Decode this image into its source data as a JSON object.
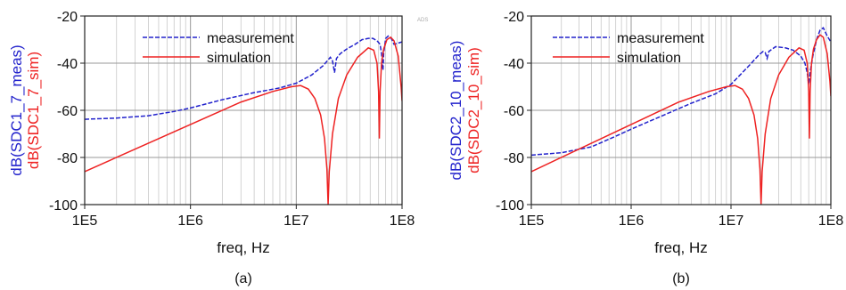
{
  "watermark": "ADS",
  "chart_data": [
    {
      "type": "line",
      "caption": "(a)",
      "xlabel": "freq, Hz",
      "ylabel_measured": "dB(SDC1_7_meas)",
      "ylabel_simulated": "dB(SDC1_7_sim)",
      "x_scale": "log",
      "xlim": [
        100000,
        100000000
      ],
      "ylim": [
        -100,
        -20
      ],
      "x_ticks": [
        "1E5",
        "1E6",
        "1E7",
        "1E8"
      ],
      "y_ticks": [
        "-20",
        "-40",
        "-60",
        "-80",
        "-100"
      ],
      "grid": true,
      "legend_position": "top-left",
      "series": [
        {
          "name": "measurement",
          "color": "#2222cc",
          "style": "dashed",
          "points": [
            [
              100000,
              -63.8
            ],
            [
              200000,
              -63.3
            ],
            [
              400000,
              -62.3
            ],
            [
              700000,
              -60.5
            ],
            [
              1000000,
              -59
            ],
            [
              2000000,
              -55.5
            ],
            [
              4000000,
              -52.5
            ],
            [
              7000000,
              -50.5
            ],
            [
              10000000,
              -48.5
            ],
            [
              14000000,
              -45
            ],
            [
              18000000,
              -41
            ],
            [
              21000000,
              -37.5
            ],
            [
              22000000,
              -39
            ],
            [
              23000000,
              -44
            ],
            [
              24000000,
              -38
            ],
            [
              26000000,
              -36
            ],
            [
              30000000,
              -34
            ],
            [
              36000000,
              -32
            ],
            [
              42000000,
              -30
            ],
            [
              48000000,
              -29.5
            ],
            [
              53000000,
              -29.5
            ],
            [
              58000000,
              -30.5
            ],
            [
              62000000,
              -32
            ],
            [
              64000000,
              -36
            ],
            [
              66000000,
              -43
            ],
            [
              67000000,
              -36
            ],
            [
              70000000,
              -29.5
            ],
            [
              74000000,
              -28.5
            ],
            [
              79000000,
              -29.5
            ],
            [
              84000000,
              -32
            ],
            [
              100000000,
              -31
            ]
          ]
        },
        {
          "name": "simulation",
          "color": "#ee2222",
          "style": "solid",
          "points": [
            [
              100000,
              -86
            ],
            [
              1000000,
              -66
            ],
            [
              3000000,
              -56.5
            ],
            [
              6000000,
              -52
            ],
            [
              9000000,
              -50
            ],
            [
              11000000,
              -49.5
            ],
            [
              13000000,
              -51
            ],
            [
              15000000,
              -55
            ],
            [
              17000000,
              -62
            ],
            [
              18500000,
              -72
            ],
            [
              19500000,
              -85
            ],
            [
              20000000,
              -100
            ],
            [
              20500000,
              -86
            ],
            [
              22000000,
              -70
            ],
            [
              25000000,
              -55
            ],
            [
              30000000,
              -45
            ],
            [
              38000000,
              -37.5
            ],
            [
              48000000,
              -33.5
            ],
            [
              54000000,
              -34.5
            ],
            [
              58000000,
              -40
            ],
            [
              60000000,
              -52
            ],
            [
              61000000,
              -72
            ],
            [
              62000000,
              -52
            ],
            [
              64000000,
              -40
            ],
            [
              67000000,
              -34
            ],
            [
              72000000,
              -30
            ],
            [
              78000000,
              -29
            ],
            [
              84000000,
              -30.5
            ],
            [
              92000000,
              -37
            ],
            [
              98000000,
              -50
            ],
            [
              100000000,
              -56
            ]
          ]
        }
      ]
    },
    {
      "type": "line",
      "caption": "(b)",
      "xlabel": "freq, Hz",
      "ylabel_measured": "dB(SDC2_10_meas)",
      "ylabel_simulated": "dB(SDC2_10_sim)",
      "x_scale": "log",
      "xlim": [
        100000,
        100000000
      ],
      "ylim": [
        -100,
        -20
      ],
      "x_ticks": [
        "1E5",
        "1E6",
        "1E7",
        "1E8"
      ],
      "y_ticks": [
        "-20",
        "-40",
        "-60",
        "-80",
        "-100"
      ],
      "grid": true,
      "legend_position": "top-left",
      "series": [
        {
          "name": "measurement",
          "color": "#2222cc",
          "style": "dashed",
          "points": [
            [
              100000,
              -79
            ],
            [
              200000,
              -78
            ],
            [
              400000,
              -75.5
            ],
            [
              700000,
              -71
            ],
            [
              1000000,
              -68
            ],
            [
              2000000,
              -62.5
            ],
            [
              4000000,
              -57
            ],
            [
              7000000,
              -53
            ],
            [
              10000000,
              -49
            ],
            [
              13000000,
              -44
            ],
            [
              16000000,
              -40
            ],
            [
              19000000,
              -36.5
            ],
            [
              21000000,
              -35
            ],
            [
              22000000,
              -35.5
            ],
            [
              23000000,
              -38
            ],
            [
              24000000,
              -35
            ],
            [
              28000000,
              -33
            ],
            [
              35000000,
              -33.5
            ],
            [
              42000000,
              -34.5
            ],
            [
              50000000,
              -37
            ],
            [
              55000000,
              -40
            ],
            [
              58000000,
              -44
            ],
            [
              60000000,
              -49
            ],
            [
              62000000,
              -44
            ],
            [
              66000000,
              -37
            ],
            [
              72000000,
              -30
            ],
            [
              78000000,
              -26
            ],
            [
              84000000,
              -25
            ],
            [
              92000000,
              -28.5
            ],
            [
              100000000,
              -31
            ]
          ]
        },
        {
          "name": "simulation",
          "color": "#ee2222",
          "style": "solid",
          "points": [
            [
              100000,
              -86
            ],
            [
              1000000,
              -66
            ],
            [
              3000000,
              -56.5
            ],
            [
              6000000,
              -52
            ],
            [
              9000000,
              -50
            ],
            [
              11000000,
              -49.5
            ],
            [
              13000000,
              -51
            ],
            [
              15000000,
              -55
            ],
            [
              17000000,
              -62
            ],
            [
              18500000,
              -72
            ],
            [
              19500000,
              -85
            ],
            [
              20000000,
              -100
            ],
            [
              20500000,
              -86
            ],
            [
              22000000,
              -70
            ],
            [
              25000000,
              -55
            ],
            [
              30000000,
              -45
            ],
            [
              38000000,
              -37.5
            ],
            [
              48000000,
              -33.5
            ],
            [
              54000000,
              -34.5
            ],
            [
              58000000,
              -40
            ],
            [
              60000000,
              -52
            ],
            [
              61000000,
              -72
            ],
            [
              62000000,
              -52
            ],
            [
              64000000,
              -40
            ],
            [
              67000000,
              -34
            ],
            [
              72000000,
              -30
            ],
            [
              78000000,
              -28
            ],
            [
              84000000,
              -29
            ],
            [
              92000000,
              -36
            ],
            [
              98000000,
              -48
            ],
            [
              100000000,
              -54
            ]
          ]
        }
      ]
    }
  ]
}
